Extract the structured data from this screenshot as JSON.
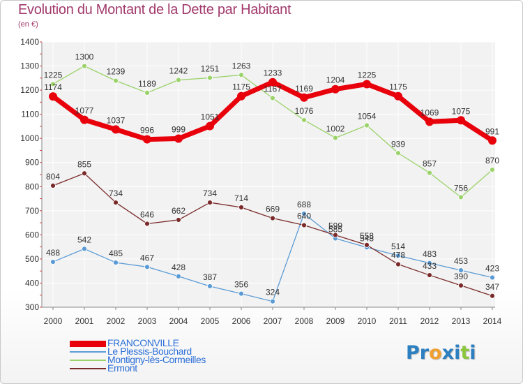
{
  "title": "Evolution du Montant de la Dette par Habitant",
  "subtitle": "(en €)",
  "logo": {
    "letters": [
      "P",
      "r",
      "o",
      "x",
      "i",
      "t",
      "i"
    ],
    "colors": [
      "#2c7fc0",
      "#2c7fc0",
      "#f0a030",
      "#2c7fc0",
      "#2c7fc0",
      "#8cc63f",
      "#2c7fc0"
    ]
  },
  "chart_data": {
    "type": "line",
    "title": "Evolution du Montant de la Dette par Habitant",
    "ylabel": "(en €)",
    "x": [
      "2000",
      "2001",
      "2002",
      "2003",
      "2004",
      "2005",
      "2006",
      "2007",
      "2008",
      "2009",
      "2010",
      "2011",
      "2012",
      "2013",
      "2014"
    ],
    "ylim": [
      300,
      1400
    ],
    "yticks": [
      300,
      400,
      500,
      600,
      700,
      800,
      900,
      1000,
      1100,
      1200,
      1300,
      1400
    ],
    "grid": true,
    "legend_position": "bottom-left",
    "series": [
      {
        "name": "FRANCONVILLE",
        "color": "#e8000b",
        "values": [
          1174,
          1077,
          1037,
          996,
          999,
          1051,
          1175,
          1233,
          1169,
          1204,
          1225,
          1175,
          1069,
          1075,
          991
        ]
      },
      {
        "name": "Le Plessis-Bouchard",
        "color": "#5b9bd5",
        "values": [
          488,
          542,
          485,
          467,
          428,
          387,
          356,
          324,
          688,
          585,
          548,
          514,
          483,
          453,
          423
        ]
      },
      {
        "name": "Montigny-lès-Cormeilles",
        "color": "#9bd26a",
        "values": [
          1225,
          1300,
          1239,
          1189,
          1242,
          1251,
          1263,
          1167,
          1076,
          1002,
          1054,
          939,
          857,
          756,
          870
        ]
      },
      {
        "name": "Ermont",
        "color": "#7a2a2a",
        "values": [
          804,
          855,
          734,
          646,
          662,
          734,
          714,
          669,
          640,
          599,
          558,
          478,
          433,
          390,
          347
        ]
      }
    ]
  }
}
